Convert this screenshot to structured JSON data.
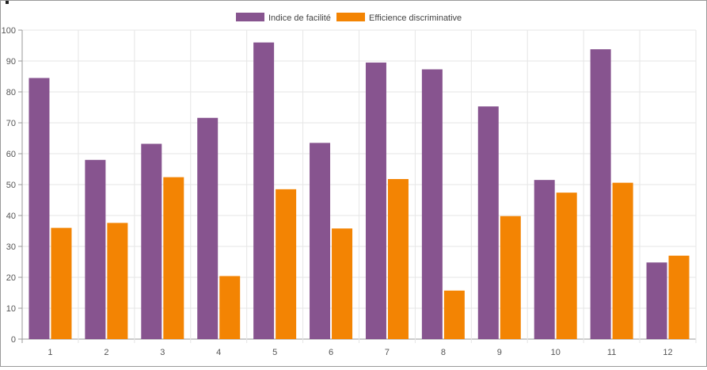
{
  "chart_data": {
    "type": "bar",
    "title": "",
    "xlabel": "",
    "ylabel": "",
    "categories": [
      "1",
      "2",
      "3",
      "4",
      "5",
      "6",
      "7",
      "8",
      "9",
      "10",
      "11",
      "12"
    ],
    "ylim": [
      0,
      100
    ],
    "yticks": [
      0,
      10,
      20,
      30,
      40,
      50,
      60,
      70,
      80,
      90,
      100
    ],
    "grid": true,
    "legend_position": "top-center",
    "series": [
      {
        "name": "Indice de facilité",
        "color": "#87548f",
        "values": [
          84.5,
          58,
          63.2,
          71.6,
          96,
          63.5,
          89.5,
          87.3,
          75.3,
          51.5,
          93.8,
          24.8
        ]
      },
      {
        "name": "Efficience discriminative",
        "color": "#f38403",
        "values": [
          36,
          37.6,
          52.4,
          20.4,
          48.5,
          35.8,
          51.8,
          15.7,
          39.8,
          47.4,
          50.6,
          27
        ]
      }
    ]
  }
}
